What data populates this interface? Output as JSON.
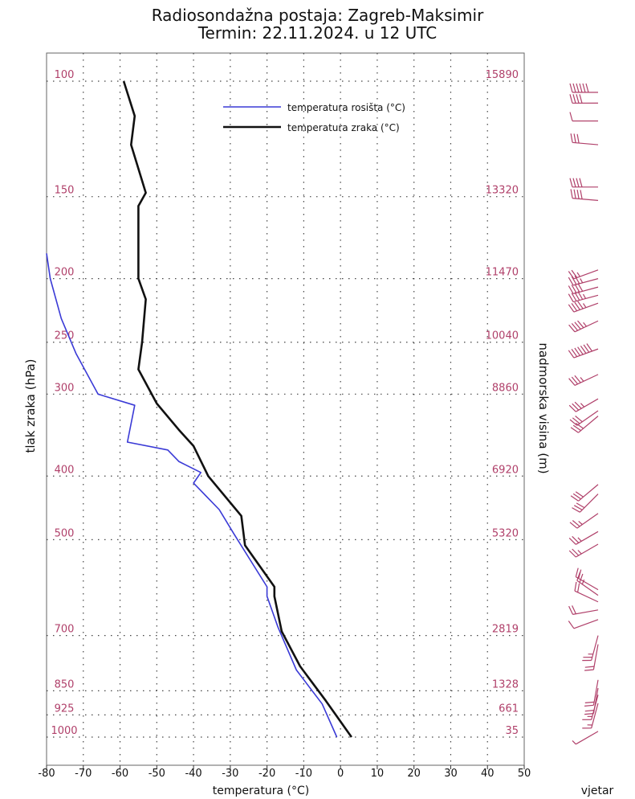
{
  "header": {
    "title": "Radiosondažna postaja: Zagreb-Maksimir",
    "subtitle": "Termin: 22.11.2024. u 12 UTC"
  },
  "chart_data": {
    "type": "line",
    "xlabel": "temperatura (°C)",
    "ylabel": "tlak zraka (hPa)",
    "y2label": "nadmorska visina (m)",
    "wind_label": "vjetar",
    "xlim": [
      -80,
      50
    ],
    "x_ticks": [
      -80,
      -70,
      -60,
      -50,
      -40,
      -30,
      -20,
      -10,
      0,
      10,
      20,
      30,
      40,
      50
    ],
    "y_scale": "log",
    "ylim_hpa": [
      1000,
      100
    ],
    "pressure_levels": [
      {
        "hpa": 100,
        "label": "100",
        "height": "15890"
      },
      {
        "hpa": 150,
        "label": "150",
        "height": "13320"
      },
      {
        "hpa": 200,
        "label": "200",
        "height": "11470"
      },
      {
        "hpa": 250,
        "label": "250",
        "height": "10040"
      },
      {
        "hpa": 300,
        "label": "300",
        "height": "8860"
      },
      {
        "hpa": 400,
        "label": "400",
        "height": "6920"
      },
      {
        "hpa": 500,
        "label": "500",
        "height": "5320"
      },
      {
        "hpa": 700,
        "label": "700",
        "height": "2819"
      },
      {
        "hpa": 850,
        "label": "850",
        "height": "1328"
      },
      {
        "hpa": 925,
        "label": "925",
        "height": "661"
      },
      {
        "hpa": 1000,
        "label": "1000",
        "height": "35"
      }
    ],
    "grid": true,
    "legend_position": "top-right",
    "colors": {
      "dewpoint": "#3a3ad6",
      "temperature": "#111111",
      "axis_labels": "#b0406a",
      "wind": "#b0406a"
    },
    "series": [
      {
        "name": "temperatura rosišta (°C)",
        "color": "#3a3ad6",
        "points": [
          [
            -80,
            183
          ],
          [
            -79,
            200
          ],
          [
            -76,
            230
          ],
          [
            -72,
            260
          ],
          [
            -66,
            300
          ],
          [
            -56,
            312
          ],
          [
            -58,
            355
          ],
          [
            -47,
            365
          ],
          [
            -44,
            380
          ],
          [
            -42,
            385
          ],
          [
            -38,
            395
          ],
          [
            -40,
            410
          ],
          [
            -33,
            450
          ],
          [
            -29,
            490
          ],
          [
            -20,
            590
          ],
          [
            -20,
            610
          ],
          [
            -17,
            680
          ],
          [
            -12,
            790
          ],
          [
            -5,
            890
          ],
          [
            -1,
            1000
          ]
        ]
      },
      {
        "name": "temperatura zraka (°C)",
        "color": "#111111",
        "points": [
          [
            -59,
            100
          ],
          [
            -56,
            113
          ],
          [
            -57,
            125
          ],
          [
            -53,
            148
          ],
          [
            -55,
            155
          ],
          [
            -55,
            200
          ],
          [
            -53,
            215
          ],
          [
            -54,
            250
          ],
          [
            -55,
            275
          ],
          [
            -50,
            310
          ],
          [
            -44,
            340
          ],
          [
            -40,
            360
          ],
          [
            -36,
            400
          ],
          [
            -27,
            460
          ],
          [
            -26,
            510
          ],
          [
            -18,
            590
          ],
          [
            -18,
            610
          ],
          [
            -16,
            690
          ],
          [
            -11,
            780
          ],
          [
            -4,
            880
          ],
          [
            3,
            1000
          ]
        ]
      }
    ],
    "wind_barbs": [
      {
        "hpa": 104,
        "dir": 270,
        "kt": 60
      },
      {
        "hpa": 108,
        "dir": 270,
        "kt": 40
      },
      {
        "hpa": 115,
        "dir": 270,
        "kt": 10
      },
      {
        "hpa": 125,
        "dir": 275,
        "kt": 30
      },
      {
        "hpa": 145,
        "dir": 270,
        "kt": 40
      },
      {
        "hpa": 152,
        "dir": 275,
        "kt": 40
      },
      {
        "hpa": 194,
        "dir": 250,
        "kt": 25
      },
      {
        "hpa": 200,
        "dir": 255,
        "kt": 35
      },
      {
        "hpa": 206,
        "dir": 255,
        "kt": 40
      },
      {
        "hpa": 212,
        "dir": 255,
        "kt": 45
      },
      {
        "hpa": 218,
        "dir": 250,
        "kt": 45
      },
      {
        "hpa": 232,
        "dir": 245,
        "kt": 45
      },
      {
        "hpa": 256,
        "dir": 250,
        "kt": 70
      },
      {
        "hpa": 280,
        "dir": 245,
        "kt": 35
      },
      {
        "hpa": 305,
        "dir": 240,
        "kt": 35
      },
      {
        "hpa": 318,
        "dir": 235,
        "kt": 30
      },
      {
        "hpa": 324,
        "dir": 230,
        "kt": 30
      },
      {
        "hpa": 412,
        "dir": 230,
        "kt": 30
      },
      {
        "hpa": 426,
        "dir": 225,
        "kt": 30
      },
      {
        "hpa": 456,
        "dir": 235,
        "kt": 25
      },
      {
        "hpa": 486,
        "dir": 240,
        "kt": 25
      },
      {
        "hpa": 508,
        "dir": 240,
        "kt": 25
      },
      {
        "hpa": 596,
        "dir": 300,
        "kt": 20
      },
      {
        "hpa": 608,
        "dir": 305,
        "kt": 25
      },
      {
        "hpa": 622,
        "dir": 295,
        "kt": 20
      },
      {
        "hpa": 640,
        "dir": 260,
        "kt": 20
      },
      {
        "hpa": 662,
        "dir": 250,
        "kt": 10
      },
      {
        "hpa": 700,
        "dir": 195,
        "kt": 25
      },
      {
        "hpa": 722,
        "dir": 190,
        "kt": 20
      },
      {
        "hpa": 818,
        "dir": 190,
        "kt": 20
      },
      {
        "hpa": 842,
        "dir": 190,
        "kt": 20
      },
      {
        "hpa": 862,
        "dir": 195,
        "kt": 15
      },
      {
        "hpa": 888,
        "dir": 195,
        "kt": 15
      },
      {
        "hpa": 980,
        "dir": 240,
        "kt": 5
      }
    ]
  }
}
